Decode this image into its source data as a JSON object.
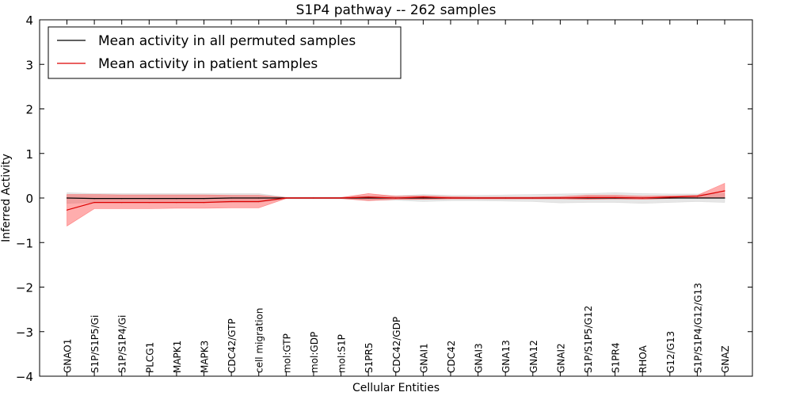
{
  "chart_data": {
    "type": "line",
    "title": "S1P4 pathway -- 262 samples",
    "xlabel": "Cellular Entities",
    "ylabel": "Inferred Activity",
    "ylim": [
      -4,
      4
    ],
    "yticks": [
      4,
      3,
      2,
      1,
      0,
      -1,
      -2,
      -3,
      -4
    ],
    "ytick_labels": [
      "4",
      "3",
      "2",
      "1",
      "0",
      "−1",
      "−2",
      "−3",
      "−4"
    ],
    "grid": false,
    "legend_position": "top-left",
    "categories": [
      "GNAO1",
      "S1P/S1P5/Gi",
      "S1P/S1P4/Gi",
      "PLCG1",
      "MAPK1",
      "MAPK3",
      "CDC42/GTP",
      "cell migration",
      "mol:GTP",
      "mol:GDP",
      "mol:S1P",
      "S1PR5",
      "CDC42/GDP",
      "GNAI1",
      "CDC42",
      "GNAI3",
      "GNA13",
      "GNA12",
      "GNAI2",
      "S1P/S1P5/G12",
      "S1PR4",
      "RHOA",
      "G12/G13",
      "S1P/S1P4/G12/G13",
      "GNAZ"
    ],
    "series": [
      {
        "name": "Mean activity in all permuted samples",
        "color": "#000000",
        "values": [
          0.0,
          -0.01,
          -0.01,
          -0.01,
          -0.01,
          -0.01,
          0.0,
          0.0,
          0.0,
          0.0,
          0.0,
          0.0,
          0.0,
          0.0,
          0.0,
          0.0,
          0.0,
          0.0,
          0.0,
          0.0,
          0.0,
          0.0,
          0.0,
          0.0,
          0.0
        ],
        "band_upper": [
          0.12,
          0.1,
          0.1,
          0.1,
          0.1,
          0.1,
          0.1,
          0.1,
          0.02,
          0.02,
          0.02,
          0.05,
          0.05,
          0.08,
          0.06,
          0.06,
          0.07,
          0.08,
          0.09,
          0.1,
          0.12,
          0.1,
          0.09,
          0.09,
          0.1
        ],
        "band_lower": [
          -0.12,
          -0.1,
          -0.1,
          -0.1,
          -0.1,
          -0.1,
          -0.1,
          -0.1,
          -0.02,
          -0.02,
          -0.02,
          -0.05,
          -0.05,
          -0.08,
          -0.06,
          -0.06,
          -0.07,
          -0.08,
          -0.11,
          -0.1,
          -0.1,
          -0.12,
          -0.1,
          -0.08,
          -0.1
        ],
        "band_color": "#c8c8c8"
      },
      {
        "name": "Mean activity in patient samples",
        "color": "#dd0000",
        "values": [
          -0.27,
          -0.1,
          -0.1,
          -0.1,
          -0.1,
          -0.1,
          -0.08,
          -0.08,
          0.0,
          0.0,
          0.0,
          0.02,
          0.0,
          0.02,
          0.0,
          0.0,
          0.0,
          0.0,
          0.0,
          0.01,
          0.01,
          0.0,
          0.02,
          0.04,
          0.16
        ],
        "band_upper": [
          0.08,
          0.08,
          0.07,
          0.07,
          0.07,
          0.07,
          0.06,
          0.06,
          0.01,
          0.01,
          0.01,
          0.1,
          0.04,
          0.05,
          0.03,
          0.02,
          0.02,
          0.02,
          0.03,
          0.06,
          0.06,
          0.04,
          0.05,
          0.06,
          0.33
        ],
        "band_lower": [
          -0.63,
          -0.24,
          -0.24,
          -0.24,
          -0.23,
          -0.23,
          -0.22,
          -0.22,
          -0.01,
          -0.01,
          -0.01,
          -0.06,
          -0.03,
          -0.03,
          -0.02,
          -0.02,
          -0.02,
          -0.02,
          -0.02,
          -0.03,
          -0.02,
          -0.03,
          -0.01,
          0.01,
          0.0
        ],
        "band_color": "#ff3333"
      }
    ]
  }
}
